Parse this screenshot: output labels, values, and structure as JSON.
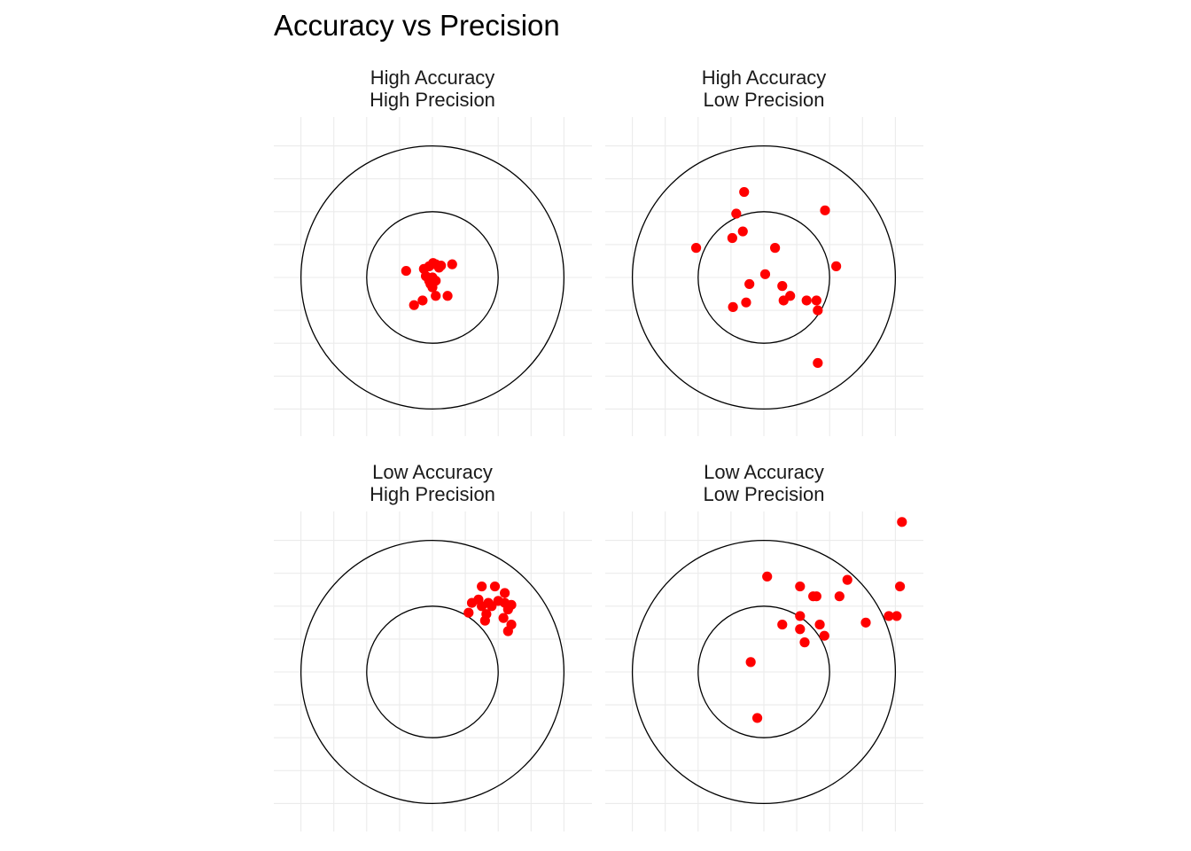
{
  "title": "Accuracy vs Precision",
  "colors": {
    "point": "#ff0000",
    "grid": "#ebebeb",
    "ring": "#000000",
    "text": "#1a1a1a"
  },
  "chart_data": {
    "type": "scatter",
    "title": "Accuracy vs Precision",
    "xlabel": "",
    "ylabel": "",
    "xlim": [
      -2.4,
      2.4
    ],
    "ylim": [
      -2.4,
      2.4
    ],
    "grid": true,
    "legend": "none",
    "rings": [
      1,
      2
    ],
    "panels": [
      {
        "title": "High Accuracy\nHigh Precision",
        "points": [
          [
            -0.4,
            0.1
          ],
          [
            -0.13,
            0.13
          ],
          [
            -0.05,
            0.17
          ],
          [
            0.0,
            0.0
          ],
          [
            0.01,
            0.22
          ],
          [
            0.05,
            0.2
          ],
          [
            0.1,
            0.15
          ],
          [
            0.13,
            0.18
          ],
          [
            0.3,
            0.2
          ],
          [
            -0.1,
            0.02
          ],
          [
            -0.05,
            -0.05
          ],
          [
            -0.03,
            -0.1
          ],
          [
            0.05,
            -0.05
          ],
          [
            0.0,
            -0.15
          ],
          [
            0.05,
            -0.28
          ],
          [
            0.23,
            -0.28
          ],
          [
            -0.15,
            -0.35
          ],
          [
            -0.28,
            -0.42
          ]
        ]
      },
      {
        "title": "High Accuracy\nLow Precision",
        "points": [
          [
            -0.3,
            1.3
          ],
          [
            -0.42,
            0.97
          ],
          [
            0.93,
            1.02
          ],
          [
            -0.32,
            0.7
          ],
          [
            -0.48,
            0.6
          ],
          [
            0.17,
            0.45
          ],
          [
            -1.03,
            0.45
          ],
          [
            1.1,
            0.17
          ],
          [
            0.02,
            0.05
          ],
          [
            -0.22,
            -0.1
          ],
          [
            0.28,
            -0.13
          ],
          [
            0.4,
            -0.28
          ],
          [
            0.3,
            -0.35
          ],
          [
            0.65,
            -0.35
          ],
          [
            0.8,
            -0.35
          ],
          [
            -0.27,
            -0.38
          ],
          [
            -0.47,
            -0.45
          ],
          [
            0.82,
            -0.5
          ],
          [
            0.82,
            -1.3
          ]
        ]
      },
      {
        "title": "Low Accuracy\nHigh Precision",
        "points": [
          [
            0.75,
            1.3
          ],
          [
            0.95,
            1.3
          ],
          [
            1.1,
            1.2
          ],
          [
            0.6,
            1.05
          ],
          [
            0.75,
            1.0
          ],
          [
            0.7,
            1.1
          ],
          [
            0.85,
            1.05
          ],
          [
            1.0,
            1.08
          ],
          [
            1.1,
            1.05
          ],
          [
            1.2,
            1.02
          ],
          [
            1.15,
            0.95
          ],
          [
            0.9,
            1.0
          ],
          [
            0.55,
            0.9
          ],
          [
            0.82,
            0.88
          ],
          [
            0.8,
            0.78
          ],
          [
            1.08,
            0.82
          ],
          [
            1.2,
            0.72
          ],
          [
            1.15,
            0.62
          ]
        ]
      },
      {
        "title": "Low Accuracy\nLow Precision",
        "points": [
          [
            2.1,
            2.28
          ],
          [
            0.05,
            1.45
          ],
          [
            0.55,
            1.3
          ],
          [
            0.75,
            1.15
          ],
          [
            0.8,
            1.15
          ],
          [
            1.27,
            1.4
          ],
          [
            1.15,
            1.15
          ],
          [
            2.07,
            1.3
          ],
          [
            1.9,
            0.85
          ],
          [
            2.02,
            0.85
          ],
          [
            0.55,
            0.85
          ],
          [
            0.85,
            0.72
          ],
          [
            1.55,
            0.75
          ],
          [
            0.28,
            0.72
          ],
          [
            0.55,
            0.65
          ],
          [
            0.62,
            0.45
          ],
          [
            0.92,
            0.55
          ],
          [
            -0.2,
            0.15
          ],
          [
            -0.1,
            -0.7
          ]
        ]
      }
    ]
  }
}
